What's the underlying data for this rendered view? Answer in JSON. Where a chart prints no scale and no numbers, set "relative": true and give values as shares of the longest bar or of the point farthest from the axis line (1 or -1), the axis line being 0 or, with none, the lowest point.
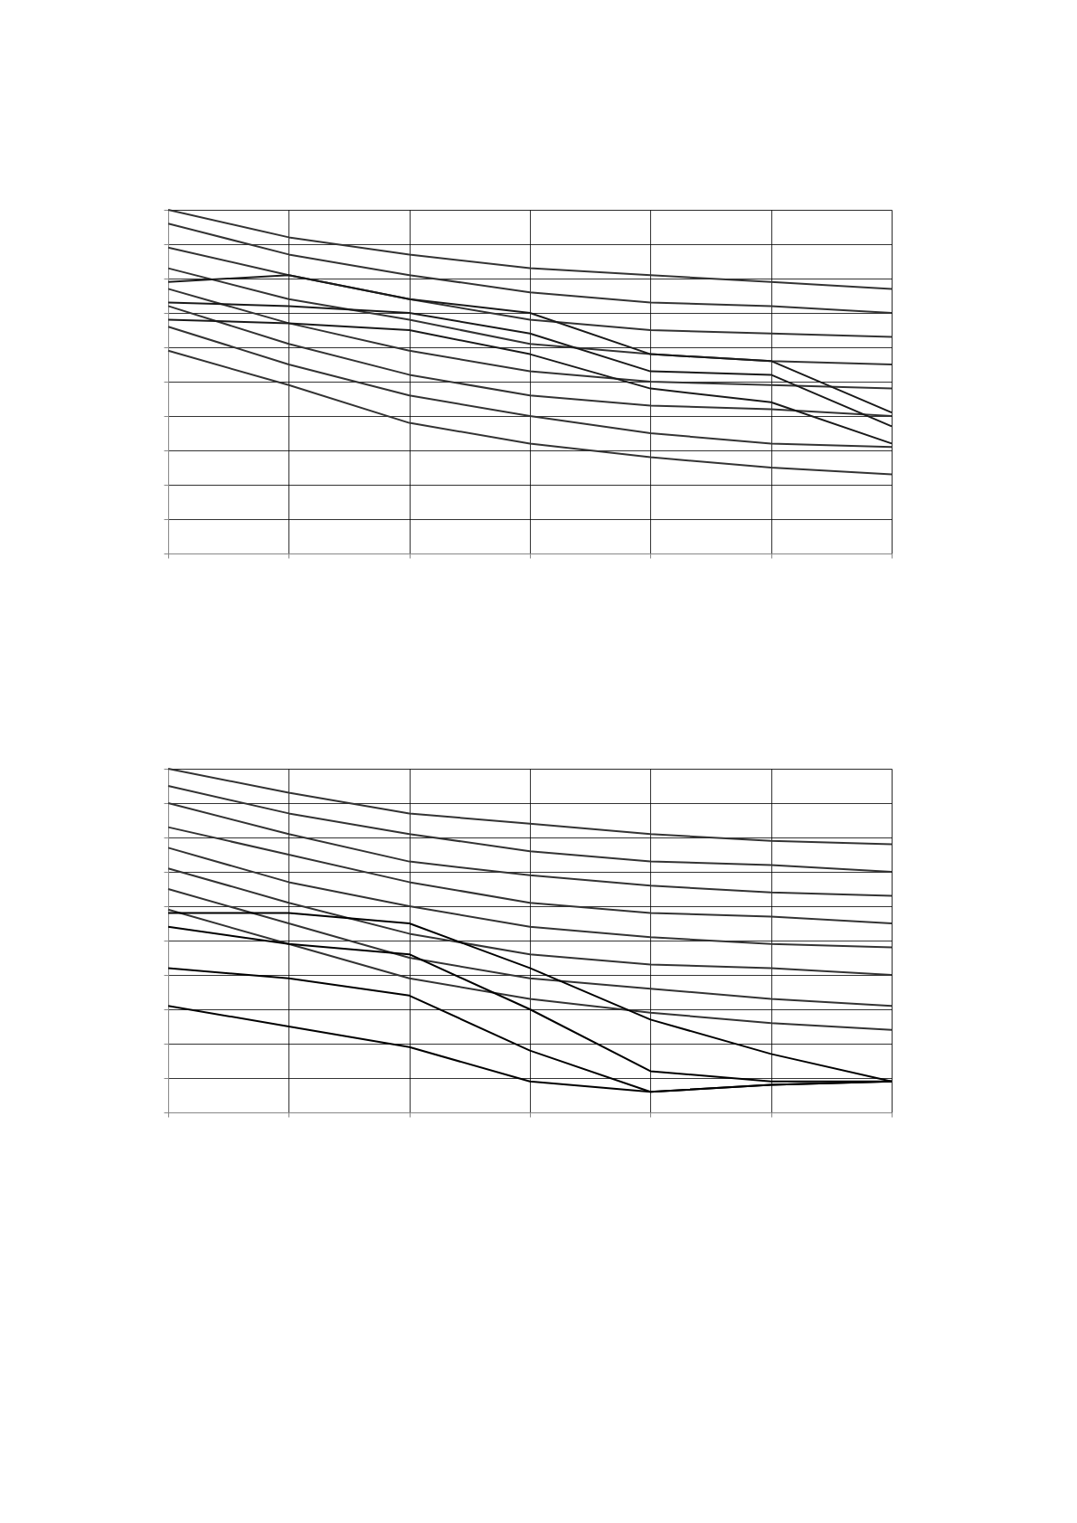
{
  "chart_data": [
    {
      "type": "line",
      "relative": true,
      "grid": true,
      "tick_labels": false,
      "legend": false,
      "marker": "none",
      "line_style": "solid",
      "categories": [
        null,
        null,
        null,
        null,
        null,
        null,
        null
      ],
      "series": [
        {
          "color": "#333333",
          "values": [
            1.0,
            0.92,
            0.87,
            0.83,
            0.81,
            0.79,
            0.77
          ]
        },
        {
          "color": "#333333",
          "values": [
            0.96,
            0.87,
            0.81,
            0.76,
            0.73,
            0.72,
            0.7
          ]
        },
        {
          "color": "#333333",
          "values": [
            0.89,
            0.81,
            0.74,
            0.68,
            0.65,
            0.64,
            0.63
          ]
        },
        {
          "color": "#333333",
          "values": [
            0.83,
            0.74,
            0.68,
            0.61,
            0.58,
            0.56,
            0.55
          ]
        },
        {
          "color": "#333333",
          "values": [
            0.77,
            0.67,
            0.59,
            0.53,
            0.5,
            0.49,
            0.48
          ]
        },
        {
          "color": "#333333",
          "values": [
            0.72,
            0.61,
            0.52,
            0.46,
            0.43,
            0.42,
            0.4
          ]
        },
        {
          "color": "#333333",
          "values": [
            0.66,
            0.55,
            0.46,
            0.4,
            0.35,
            0.32,
            0.31
          ]
        },
        {
          "color": "#333333",
          "values": [
            0.59,
            0.49,
            0.38,
            0.32,
            0.28,
            0.25,
            0.23
          ]
        },
        {
          "color": "#1a1a1a",
          "values": [
            0.79,
            0.81,
            0.74,
            0.7,
            0.58,
            0.56,
            0.41
          ]
        },
        {
          "color": "#1a1a1a",
          "values": [
            0.73,
            0.72,
            0.7,
            0.64,
            0.53,
            0.52,
            0.37
          ]
        },
        {
          "color": "#1a1a1a",
          "values": [
            0.68,
            0.67,
            0.65,
            0.58,
            0.48,
            0.44,
            0.32
          ]
        }
      ]
    },
    {
      "type": "line",
      "relative": true,
      "grid": true,
      "tick_labels": false,
      "legend": false,
      "marker": "none",
      "line_style": "solid",
      "categories": [
        null,
        null,
        null,
        null,
        null,
        null,
        null
      ],
      "series": [
        {
          "color": "#333333",
          "values": [
            1.0,
            0.93,
            0.87,
            0.84,
            0.81,
            0.79,
            0.78
          ]
        },
        {
          "color": "#333333",
          "values": [
            0.95,
            0.87,
            0.81,
            0.76,
            0.73,
            0.72,
            0.7
          ]
        },
        {
          "color": "#333333",
          "values": [
            0.9,
            0.81,
            0.73,
            0.69,
            0.66,
            0.64,
            0.63
          ]
        },
        {
          "color": "#333333",
          "values": [
            0.83,
            0.75,
            0.67,
            0.61,
            0.58,
            0.57,
            0.55
          ]
        },
        {
          "color": "#333333",
          "values": [
            0.77,
            0.67,
            0.6,
            0.54,
            0.51,
            0.49,
            0.48
          ]
        },
        {
          "color": "#333333",
          "values": [
            0.71,
            0.61,
            0.52,
            0.46,
            0.43,
            0.42,
            0.4
          ]
        },
        {
          "color": "#333333",
          "values": [
            0.65,
            0.55,
            0.45,
            0.39,
            0.36,
            0.33,
            0.31
          ]
        },
        {
          "color": "#333333",
          "values": [
            0.59,
            0.49,
            0.39,
            0.33,
            0.29,
            0.26,
            0.24
          ]
        },
        {
          "color": "#000000",
          "values": [
            0.58,
            0.58,
            0.55,
            0.42,
            0.27,
            0.17,
            0.09
          ]
        },
        {
          "color": "#000000",
          "values": [
            0.54,
            0.49,
            0.46,
            0.3,
            0.12,
            0.09,
            0.09
          ]
        },
        {
          "color": "#000000",
          "values": [
            0.42,
            0.39,
            0.34,
            0.18,
            0.06,
            0.08,
            0.09
          ]
        },
        {
          "color": "#000000",
          "values": [
            0.31,
            0.25,
            0.19,
            0.09,
            0.06,
            0.08,
            0.09
          ]
        }
      ]
    }
  ]
}
